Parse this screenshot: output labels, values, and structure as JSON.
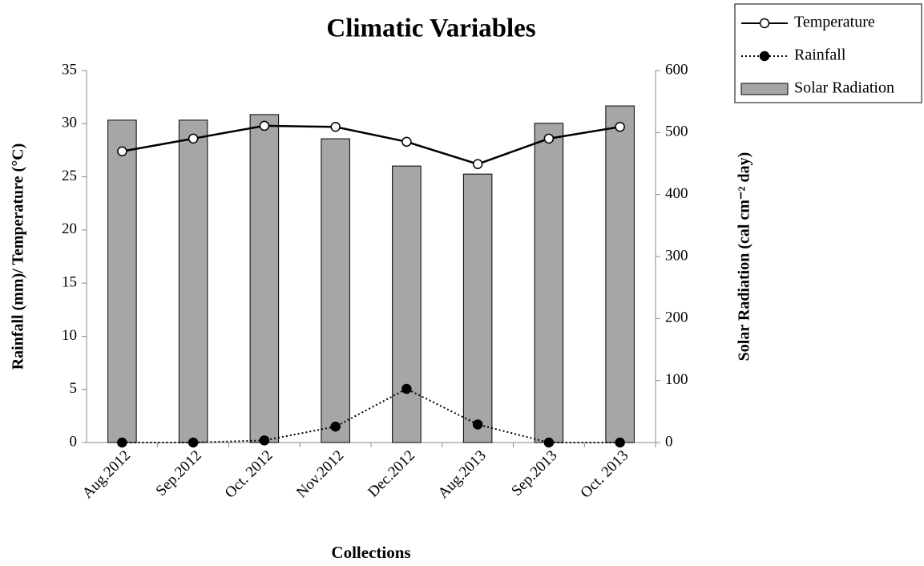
{
  "chart_data": {
    "type": "combo",
    "title": "Climatic Variables",
    "x_label": "Collections",
    "y_label": "Rainfall (mm)/ Temperature (°C)",
    "y2_label": "Solar Radiation (cal cm⁻² day)",
    "categories": [
      "Aug.2012",
      "Sep.2012",
      "Oct. 2012",
      "Nov.2012",
      "Dec.2012",
      "Aug.2013",
      "Sep.2013",
      "Oct. 2013"
    ],
    "series": [
      {
        "name": "Temperature",
        "type": "line",
        "color": "#000000",
        "marker": "open",
        "dash": "solid",
        "values": [
          27.4,
          28.6,
          29.8,
          29.7,
          28.3,
          26.2,
          28.6,
          29.7
        ]
      },
      {
        "name": "Rainfall",
        "type": "line",
        "color": "#000000",
        "marker": "filled",
        "dash": "dotted",
        "values": [
          0,
          0,
          0.2,
          1.5,
          5.05,
          1.7,
          0,
          0
        ]
      },
      {
        "name": "Solar Radiation",
        "type": "bar",
        "axis": "y2",
        "color": "#a6a6a6",
        "values": [
          520,
          520,
          529,
          490,
          446,
          433,
          515,
          543
        ]
      }
    ],
    "ylim": [
      0,
      35
    ],
    "yticks": [
      0,
      5,
      10,
      15,
      20,
      25,
      30,
      35
    ],
    "y2lim": [
      0,
      600
    ],
    "y2ticks": [
      0,
      100,
      200,
      300,
      400,
      500,
      600
    ],
    "legend": "top-right"
  }
}
